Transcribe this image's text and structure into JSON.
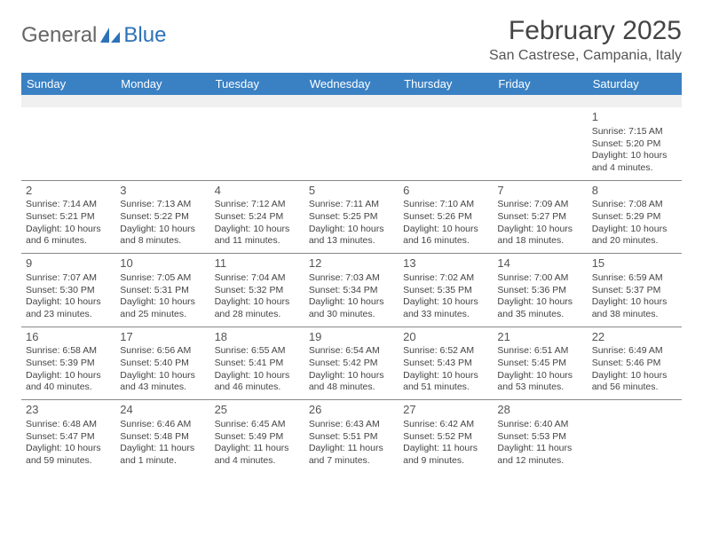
{
  "brand": {
    "part1": "General",
    "part2": "Blue"
  },
  "title": "February 2025",
  "location": "San Castrese, Campania, Italy",
  "colors": {
    "header_bg": "#3a81c4",
    "header_text": "#ffffff",
    "brand_blue": "#2d72b8",
    "text": "#444444",
    "blank_row": "#f0f0f0",
    "separator": "#888888"
  },
  "day_headers": [
    "Sunday",
    "Monday",
    "Tuesday",
    "Wednesday",
    "Thursday",
    "Friday",
    "Saturday"
  ],
  "weeks": [
    [
      null,
      null,
      null,
      null,
      null,
      null,
      {
        "n": "1",
        "sunrise": "Sunrise: 7:15 AM",
        "sunset": "Sunset: 5:20 PM",
        "daylight": "Daylight: 10 hours and 4 minutes."
      }
    ],
    [
      {
        "n": "2",
        "sunrise": "Sunrise: 7:14 AM",
        "sunset": "Sunset: 5:21 PM",
        "daylight": "Daylight: 10 hours and 6 minutes."
      },
      {
        "n": "3",
        "sunrise": "Sunrise: 7:13 AM",
        "sunset": "Sunset: 5:22 PM",
        "daylight": "Daylight: 10 hours and 8 minutes."
      },
      {
        "n": "4",
        "sunrise": "Sunrise: 7:12 AM",
        "sunset": "Sunset: 5:24 PM",
        "daylight": "Daylight: 10 hours and 11 minutes."
      },
      {
        "n": "5",
        "sunrise": "Sunrise: 7:11 AM",
        "sunset": "Sunset: 5:25 PM",
        "daylight": "Daylight: 10 hours and 13 minutes."
      },
      {
        "n": "6",
        "sunrise": "Sunrise: 7:10 AM",
        "sunset": "Sunset: 5:26 PM",
        "daylight": "Daylight: 10 hours and 16 minutes."
      },
      {
        "n": "7",
        "sunrise": "Sunrise: 7:09 AM",
        "sunset": "Sunset: 5:27 PM",
        "daylight": "Daylight: 10 hours and 18 minutes."
      },
      {
        "n": "8",
        "sunrise": "Sunrise: 7:08 AM",
        "sunset": "Sunset: 5:29 PM",
        "daylight": "Daylight: 10 hours and 20 minutes."
      }
    ],
    [
      {
        "n": "9",
        "sunrise": "Sunrise: 7:07 AM",
        "sunset": "Sunset: 5:30 PM",
        "daylight": "Daylight: 10 hours and 23 minutes."
      },
      {
        "n": "10",
        "sunrise": "Sunrise: 7:05 AM",
        "sunset": "Sunset: 5:31 PM",
        "daylight": "Daylight: 10 hours and 25 minutes."
      },
      {
        "n": "11",
        "sunrise": "Sunrise: 7:04 AM",
        "sunset": "Sunset: 5:32 PM",
        "daylight": "Daylight: 10 hours and 28 minutes."
      },
      {
        "n": "12",
        "sunrise": "Sunrise: 7:03 AM",
        "sunset": "Sunset: 5:34 PM",
        "daylight": "Daylight: 10 hours and 30 minutes."
      },
      {
        "n": "13",
        "sunrise": "Sunrise: 7:02 AM",
        "sunset": "Sunset: 5:35 PM",
        "daylight": "Daylight: 10 hours and 33 minutes."
      },
      {
        "n": "14",
        "sunrise": "Sunrise: 7:00 AM",
        "sunset": "Sunset: 5:36 PM",
        "daylight": "Daylight: 10 hours and 35 minutes."
      },
      {
        "n": "15",
        "sunrise": "Sunrise: 6:59 AM",
        "sunset": "Sunset: 5:37 PM",
        "daylight": "Daylight: 10 hours and 38 minutes."
      }
    ],
    [
      {
        "n": "16",
        "sunrise": "Sunrise: 6:58 AM",
        "sunset": "Sunset: 5:39 PM",
        "daylight": "Daylight: 10 hours and 40 minutes."
      },
      {
        "n": "17",
        "sunrise": "Sunrise: 6:56 AM",
        "sunset": "Sunset: 5:40 PM",
        "daylight": "Daylight: 10 hours and 43 minutes."
      },
      {
        "n": "18",
        "sunrise": "Sunrise: 6:55 AM",
        "sunset": "Sunset: 5:41 PM",
        "daylight": "Daylight: 10 hours and 46 minutes."
      },
      {
        "n": "19",
        "sunrise": "Sunrise: 6:54 AM",
        "sunset": "Sunset: 5:42 PM",
        "daylight": "Daylight: 10 hours and 48 minutes."
      },
      {
        "n": "20",
        "sunrise": "Sunrise: 6:52 AM",
        "sunset": "Sunset: 5:43 PM",
        "daylight": "Daylight: 10 hours and 51 minutes."
      },
      {
        "n": "21",
        "sunrise": "Sunrise: 6:51 AM",
        "sunset": "Sunset: 5:45 PM",
        "daylight": "Daylight: 10 hours and 53 minutes."
      },
      {
        "n": "22",
        "sunrise": "Sunrise: 6:49 AM",
        "sunset": "Sunset: 5:46 PM",
        "daylight": "Daylight: 10 hours and 56 minutes."
      }
    ],
    [
      {
        "n": "23",
        "sunrise": "Sunrise: 6:48 AM",
        "sunset": "Sunset: 5:47 PM",
        "daylight": "Daylight: 10 hours and 59 minutes."
      },
      {
        "n": "24",
        "sunrise": "Sunrise: 6:46 AM",
        "sunset": "Sunset: 5:48 PM",
        "daylight": "Daylight: 11 hours and 1 minute."
      },
      {
        "n": "25",
        "sunrise": "Sunrise: 6:45 AM",
        "sunset": "Sunset: 5:49 PM",
        "daylight": "Daylight: 11 hours and 4 minutes."
      },
      {
        "n": "26",
        "sunrise": "Sunrise: 6:43 AM",
        "sunset": "Sunset: 5:51 PM",
        "daylight": "Daylight: 11 hours and 7 minutes."
      },
      {
        "n": "27",
        "sunrise": "Sunrise: 6:42 AM",
        "sunset": "Sunset: 5:52 PM",
        "daylight": "Daylight: 11 hours and 9 minutes."
      },
      {
        "n": "28",
        "sunrise": "Sunrise: 6:40 AM",
        "sunset": "Sunset: 5:53 PM",
        "daylight": "Daylight: 11 hours and 12 minutes."
      },
      null
    ]
  ]
}
